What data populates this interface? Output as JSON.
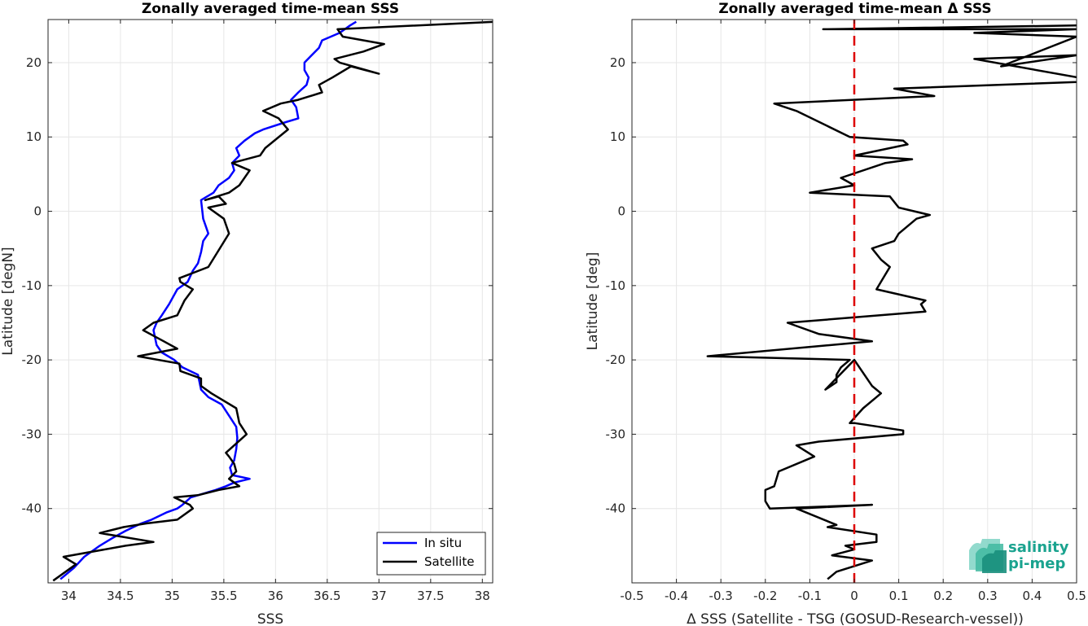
{
  "chart_data": [
    {
      "type": "line",
      "title": "Zonally averaged time-mean SSS",
      "xlabel": "SSS",
      "ylabel": "Latitude [degN]",
      "xlim": [
        33.8,
        38.1
      ],
      "ylim": [
        -50,
        25.8
      ],
      "xticks": [
        34,
        34.5,
        35,
        35.5,
        36,
        36.5,
        37,
        37.5,
        38
      ],
      "xtick_labels": [
        "34",
        "34.5",
        "35",
        "35.5",
        "36",
        "36.5",
        "37",
        "37.5",
        "38"
      ],
      "yticks": [
        -40,
        -30,
        -20,
        -10,
        0,
        10,
        20
      ],
      "ytick_labels": [
        "-40",
        "-30",
        "-20",
        "-10",
        "0",
        "10",
        "20"
      ],
      "grid": true,
      "legend": "bottom-right",
      "legend_entries": [
        "In situ",
        "Satellite"
      ],
      "series": [
        {
          "name": "In situ",
          "color": "#0000ff",
          "x": [
            33.92,
            34.05,
            34.15,
            34.3,
            34.42,
            34.55,
            34.7,
            34.8,
            34.95,
            35.05,
            35.1,
            35.18,
            35.3,
            35.42,
            35.52,
            35.6,
            35.75,
            35.58,
            35.56,
            35.6,
            35.62,
            35.63,
            35.62,
            35.55,
            35.48,
            35.35,
            35.28,
            35.25,
            35.1,
            35.02,
            34.9,
            34.85,
            34.82,
            34.85,
            34.9,
            34.97,
            35.05,
            35.15,
            35.2,
            35.25,
            35.28,
            35.3,
            35.35,
            35.3,
            35.28,
            35.4,
            35.45,
            35.55,
            35.6,
            35.58,
            35.65,
            35.62,
            35.7,
            35.8,
            35.88,
            36.1,
            36.22,
            36.2,
            36.15,
            36.22,
            36.3,
            36.32,
            36.28,
            36.28,
            36.35,
            36.42,
            36.45,
            36.62,
            36.72,
            36.78
          ],
          "y": [
            -49.5,
            -48.0,
            -46.5,
            -45.0,
            -44.0,
            -43.0,
            -42.0,
            -41.5,
            -40.5,
            -40.0,
            -39.5,
            -38.5,
            -38.0,
            -37.5,
            -37.0,
            -36.5,
            -36.0,
            -35.5,
            -34.5,
            -33.5,
            -32.0,
            -30.5,
            -29.0,
            -27.5,
            -26.0,
            -25.0,
            -24.0,
            -22.0,
            -21.0,
            -20.0,
            -19.0,
            -18.0,
            -16.0,
            -15.0,
            -14.0,
            -12.5,
            -10.5,
            -9.5,
            -8.0,
            -7.0,
            -5.5,
            -4.0,
            -3.0,
            -1.0,
            1.5,
            2.5,
            3.5,
            4.5,
            5.5,
            6.5,
            7.5,
            8.5,
            9.5,
            10.5,
            11.0,
            12.0,
            12.5,
            14.0,
            15.0,
            16.0,
            17.0,
            18.0,
            19.0,
            20.0,
            21.0,
            22.0,
            23.0,
            24.0,
            25.0,
            25.5
          ]
        },
        {
          "name": "Satellite",
          "color": "#000000",
          "x": [
            33.85,
            33.97,
            34.07,
            33.95,
            34.55,
            34.82,
            34.3,
            34.53,
            34.75,
            35.05,
            35.2,
            35.17,
            35.02,
            35.25,
            35.45,
            35.65,
            35.55,
            35.62,
            35.6,
            35.55,
            35.52,
            35.6,
            35.72,
            35.65,
            35.62,
            35.38,
            35.28,
            35.28,
            35.08,
            35.07,
            34.67,
            35.05,
            34.92,
            34.72,
            34.82,
            35.05,
            35.12,
            35.2,
            35.08,
            35.07,
            35.35,
            35.55,
            35.5,
            35.35,
            35.52,
            35.45,
            35.32,
            35.55,
            35.65,
            35.75,
            35.58,
            35.85,
            35.9,
            36.12,
            36.03,
            35.88,
            36.05,
            36.22,
            36.45,
            36.42,
            36.55,
            36.73,
            37.0,
            36.62,
            36.57,
            36.85,
            37.05,
            36.65,
            36.6,
            38.12
          ],
          "y": [
            -49.7,
            -48.5,
            -47.5,
            -46.5,
            -45.0,
            -44.5,
            -43.3,
            -42.5,
            -42.0,
            -41.5,
            -40.0,
            -39.5,
            -38.5,
            -38.2,
            -37.5,
            -37.0,
            -36.0,
            -35.0,
            -34.0,
            -33.0,
            -32.5,
            -31.5,
            -30.0,
            -28.5,
            -26.5,
            -24.5,
            -23.5,
            -22.5,
            -21.5,
            -20.5,
            -19.5,
            -18.5,
            -17.5,
            -16.0,
            -15.0,
            -14.0,
            -12.0,
            -10.5,
            -9.5,
            -9.0,
            -7.5,
            -3.0,
            -1.0,
            0.5,
            1.0,
            2.0,
            1.5,
            2.5,
            3.5,
            5.5,
            6.5,
            7.5,
            8.5,
            11.0,
            12.5,
            13.5,
            14.5,
            15.0,
            16.0,
            17.0,
            18.0,
            19.5,
            18.5,
            20.0,
            20.5,
            21.5,
            22.5,
            23.5,
            24.5,
            25.5
          ]
        }
      ]
    },
    {
      "type": "line",
      "title": "Zonally averaged time-mean Δ SSS",
      "xlabel": "Δ SSS (Satellite - TSG (GOSUD-Research-vessel))",
      "ylabel": "Latitude [deg]",
      "xlim": [
        -0.5,
        0.5
      ],
      "ylim": [
        -50,
        25.8
      ],
      "xticks": [
        -0.5,
        -0.4,
        -0.3,
        -0.2,
        -0.1,
        0,
        0.1,
        0.2,
        0.3,
        0.4,
        0.5
      ],
      "xtick_labels": [
        "-0.5",
        "-0.4",
        "-0.3",
        "-0.2",
        "-0.1",
        "0",
        "0.1",
        "0.2",
        "0.3",
        "0.4",
        "0.5"
      ],
      "yticks": [
        -40,
        -30,
        -20,
        -10,
        0,
        10,
        20
      ],
      "ytick_labels": [
        "-40",
        "-30",
        "-20",
        "-10",
        "0",
        "10",
        "20"
      ],
      "grid": true,
      "zero_line_color": "#dd0000",
      "series": [
        {
          "color": "#000000",
          "x": [
            -0.06,
            -0.04,
            0.04,
            -0.05,
            0.0,
            -0.02,
            0.05,
            0.05,
            -0.06,
            -0.04,
            -0.13,
            0.04,
            -0.19,
            -0.2,
            -0.2,
            -0.18,
            -0.17,
            -0.09,
            -0.13,
            -0.08,
            0.11,
            0.11,
            0.0,
            -0.01,
            0.02,
            0.05,
            0.06,
            0.04,
            0.0,
            -0.065,
            -0.04,
            -0.04,
            -0.03,
            -0.01,
            -0.33,
            0.04,
            -0.08,
            -0.15,
            0.16,
            0.15,
            0.16,
            0.05,
            0.07,
            0.08,
            0.06,
            0.04,
            0.09,
            0.1,
            0.14,
            0.17,
            0.1,
            0.08,
            -0.1,
            0.0,
            -0.03,
            0.07,
            0.13,
            0.0,
            0.12,
            0.11,
            -0.01,
            -0.13,
            -0.18,
            0.18,
            0.09,
            0.55,
            0.27,
            0.5,
            0.33,
            0.5,
            0.27,
            0.5,
            -0.07,
            0.5
          ],
          "y": [
            -49.5,
            -48.5,
            -47.0,
            -46.3,
            -45.5,
            -45.0,
            -44.5,
            -43.5,
            -42.5,
            -42.2,
            -40.0,
            -39.5,
            -40.0,
            -39.0,
            -37.5,
            -37.0,
            -35.0,
            -33.0,
            -31.5,
            -31.0,
            -30.0,
            -29.5,
            -28.5,
            -28.5,
            -26.5,
            -25.0,
            -24.5,
            -23.5,
            -20.0,
            -24.0,
            -23.0,
            -22.0,
            -21.0,
            -20.0,
            -19.5,
            -17.5,
            -16.5,
            -15.0,
            -13.5,
            -12.5,
            -12.0,
            -10.5,
            -8.5,
            -7.5,
            -6.5,
            -5.0,
            -4.0,
            -3.0,
            -1.0,
            -0.5,
            0.5,
            2.0,
            2.5,
            3.5,
            4.5,
            6.5,
            7.0,
            7.5,
            9.0,
            9.5,
            10.0,
            13.5,
            14.5,
            15.5,
            16.5,
            17.5,
            20.5,
            21.0,
            19.5,
            23.5,
            24.0,
            24.5,
            24.5,
            25.0
          ]
        }
      ]
    }
  ],
  "logo": {
    "line1": "salinity",
    "line2": "pi-mep"
  }
}
